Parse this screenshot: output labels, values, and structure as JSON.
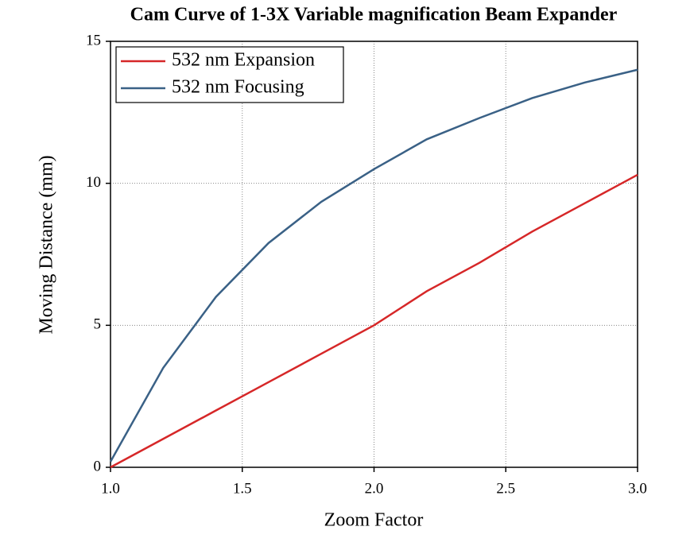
{
  "chart_data": {
    "type": "line",
    "title": "Cam Curve of 1-3X Variable magnification Beam Expander",
    "x_label": "Zoom Factor",
    "y_label": "Moving Distance (mm)",
    "x": [
      1.0,
      1.2,
      1.4,
      1.6,
      1.8,
      2.0,
      2.2,
      2.4,
      2.6,
      2.8,
      3.0
    ],
    "series": [
      {
        "name": "532 nm Expansion",
        "color": "#d62728",
        "values": [
          0,
          1.0,
          2.0,
          3.0,
          4.0,
          5.0,
          6.2,
          7.2,
          8.3,
          9.3,
          10.3
        ]
      },
      {
        "name": "532 nm Focusing",
        "color": "#3a6186",
        "values": [
          0.2,
          3.5,
          6.0,
          7.9,
          9.35,
          10.5,
          11.55,
          12.3,
          13.0,
          13.55,
          14.0
        ]
      }
    ],
    "xlim": [
      1,
      3
    ],
    "ylim": [
      0,
      15
    ],
    "xticks": [
      {
        "value": 1,
        "label": "1.0"
      },
      1.5,
      {
        "value": 2,
        "label": "2.0"
      },
      2.5,
      {
        "value": 3,
        "label": "3.0"
      }
    ],
    "yticks": [
      0,
      5,
      10,
      15
    ],
    "grid": true,
    "legend": "upper left"
  }
}
